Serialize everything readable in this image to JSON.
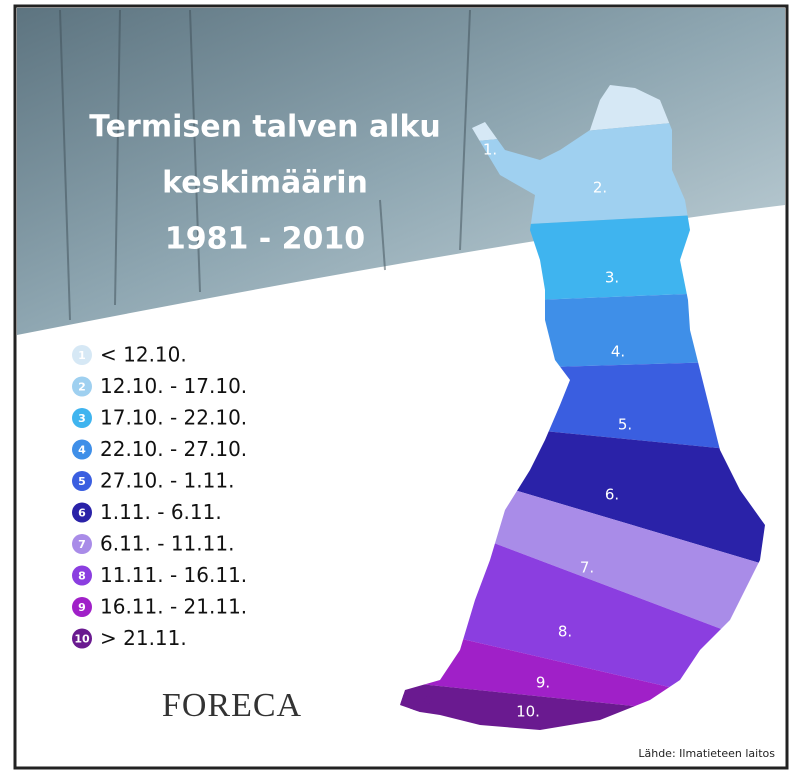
{
  "title_lines": [
    "Termisen talven alku",
    "keskimäärin",
    "1981 - 2010"
  ],
  "legend": [
    {
      "number": "1",
      "label": "< 12.10.",
      "color": "#d6e8f5"
    },
    {
      "number": "2",
      "label": "12.10. - 17.10.",
      "color": "#9fd0f0"
    },
    {
      "number": "3",
      "label": "17.10. - 22.10.",
      "color": "#3fb4ef"
    },
    {
      "number": "4",
      "label": "22.10. - 27.10.",
      "color": "#3f8fe8"
    },
    {
      "number": "5",
      "label": "27.10. - 1.11.",
      "color": "#3a5ee0"
    },
    {
      "number": "6",
      "label": "1.11. - 6.11.",
      "color": "#2a22a8"
    },
    {
      "number": "7",
      "label": "6.11. - 11.11.",
      "color": "#a98ce8"
    },
    {
      "number": "8",
      "label": "11.11. - 16.11.",
      "color": "#8b3ee0"
    },
    {
      "number": "9",
      "label": "16.11. - 21.11.",
      "color": "#a020c8"
    },
    {
      "number": "10",
      "label": "> 21.11.",
      "color": "#6a1a90"
    }
  ],
  "zone_labels": [
    "1.",
    "2.",
    "3.",
    "4.",
    "5.",
    "6.",
    "7.",
    "8.",
    "9.",
    "10."
  ],
  "logo": "FORECA",
  "source": "Lähde: Ilmatieteen laitos"
}
